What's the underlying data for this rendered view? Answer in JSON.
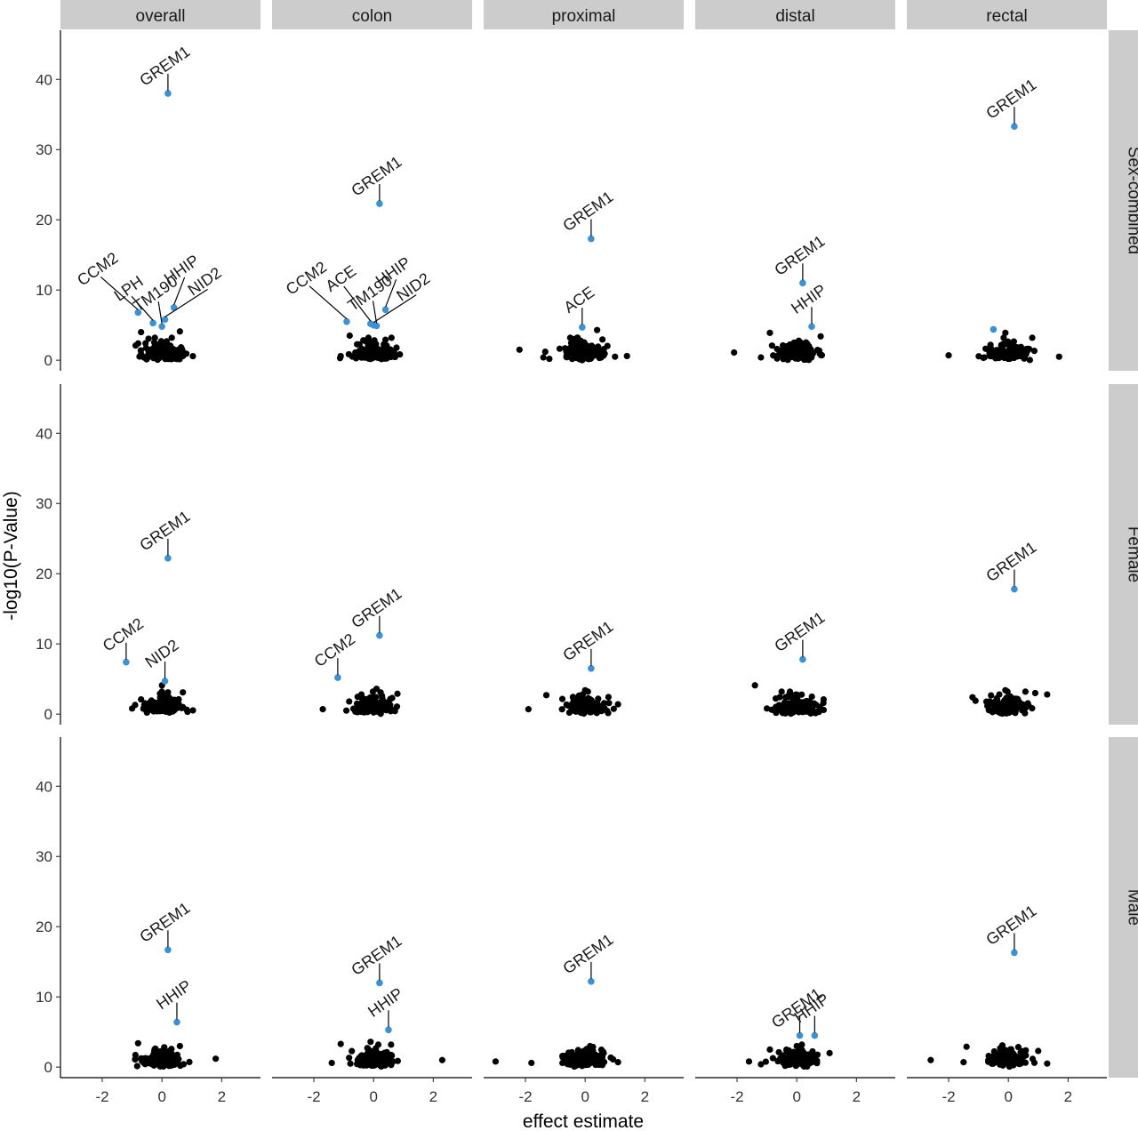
{
  "chart_data": {
    "type": "scatter",
    "xlabel": "effect estimate",
    "ylabel": "-log10(P-Value)",
    "xlim": [
      -3.4,
      3.3
    ],
    "ylim": [
      -1.5,
      47
    ],
    "x_ticks": [
      -2,
      0,
      2
    ],
    "y_ticks": [
      0,
      10,
      20,
      30,
      40
    ],
    "columns": [
      "overall",
      "colon",
      "proximal",
      "distal",
      "rectal"
    ],
    "rows": [
      "Sex-combined",
      "Female",
      "Male"
    ],
    "colors": {
      "highlight": "#3a91d8",
      "background": "#000000",
      "strip": "#cccccc"
    },
    "panels": [
      {
        "row": "Sex-combined",
        "col": "overall",
        "highlighted": [
          {
            "gene": "GREM1",
            "x": 0.2,
            "y": 38.0
          },
          {
            "gene": "CCM2",
            "x": -0.8,
            "y": 6.8
          },
          {
            "gene": "LPH",
            "x": -0.3,
            "y": 5.3
          },
          {
            "gene": "TM190",
            "x": 0.0,
            "y": 4.8
          },
          {
            "gene": "HHIP",
            "x": 0.4,
            "y": 7.5
          },
          {
            "gene": "NID2",
            "x": 0.1,
            "y": 5.8
          }
        ],
        "outliers": [
          {
            "x": -0.7,
            "y": 0.9
          },
          {
            "x": -0.7,
            "y": 4.0
          },
          {
            "x": 0.7,
            "y": 0.6
          },
          {
            "x": 0.6,
            "y": 4.1
          }
        ]
      },
      {
        "row": "Sex-combined",
        "col": "colon",
        "highlighted": [
          {
            "gene": "GREM1",
            "x": 0.2,
            "y": 22.3
          },
          {
            "gene": "CCM2",
            "x": -0.9,
            "y": 5.5
          },
          {
            "gene": "ACE",
            "x": -0.1,
            "y": 5.2
          },
          {
            "gene": "TM190",
            "x": 0.1,
            "y": 4.9
          },
          {
            "gene": "HHIP",
            "x": 0.4,
            "y": 7.2
          },
          {
            "gene": "NID2",
            "x": 0.0,
            "y": 5.0
          }
        ],
        "outliers": [
          {
            "x": -1.1,
            "y": 0.6
          },
          {
            "x": -0.8,
            "y": 3.5
          },
          {
            "x": 0.7,
            "y": 0.8
          },
          {
            "x": 0.6,
            "y": 3.2
          }
        ]
      },
      {
        "row": "Sex-combined",
        "col": "proximal",
        "highlighted": [
          {
            "gene": "GREM1",
            "x": 0.2,
            "y": 17.3
          },
          {
            "gene": "ACE",
            "x": -0.1,
            "y": 4.7
          }
        ],
        "outliers": [
          {
            "x": -2.2,
            "y": 1.5
          },
          {
            "x": -1.4,
            "y": 0.4
          },
          {
            "x": -1.2,
            "y": 0.2
          },
          {
            "x": 1.0,
            "y": 0.5
          },
          {
            "x": 1.4,
            "y": 0.6
          },
          {
            "x": -0.5,
            "y": 3.2
          },
          {
            "x": 0.4,
            "y": 4.3
          }
        ]
      },
      {
        "row": "Sex-combined",
        "col": "distal",
        "highlighted": [
          {
            "gene": "GREM1",
            "x": 0.2,
            "y": 11.0
          },
          {
            "gene": "HHIP",
            "x": 0.5,
            "y": 4.8
          }
        ],
        "outliers": [
          {
            "x": -2.1,
            "y": 1.1
          },
          {
            "x": -1.2,
            "y": 0.4
          },
          {
            "x": -0.9,
            "y": 3.9
          },
          {
            "x": 0.8,
            "y": 3.4
          }
        ]
      },
      {
        "row": "Sex-combined",
        "col": "rectal",
        "highlighted": [
          {
            "gene": "GREM1",
            "x": 0.2,
            "y": 33.3
          },
          {
            "gene": "",
            "x": -0.5,
            "y": 4.4
          }
        ],
        "outliers": [
          {
            "x": -2.0,
            "y": 0.7
          },
          {
            "x": -0.8,
            "y": 0.4
          },
          {
            "x": 1.7,
            "y": 0.5
          },
          {
            "x": 0.8,
            "y": 3.2
          },
          {
            "x": -0.1,
            "y": 3.9
          }
        ]
      },
      {
        "row": "Female",
        "col": "overall",
        "highlighted": [
          {
            "gene": "GREM1",
            "x": 0.2,
            "y": 22.2
          },
          {
            "gene": "CCM2",
            "x": -1.2,
            "y": 7.4
          },
          {
            "gene": "NID2",
            "x": 0.1,
            "y": 4.7
          }
        ],
        "outliers": [
          {
            "x": -1.0,
            "y": 0.8
          },
          {
            "x": -0.9,
            "y": 1.3
          },
          {
            "x": -0.7,
            "y": 2.1
          },
          {
            "x": 0.7,
            "y": 3.1
          },
          {
            "x": 0.7,
            "y": 1.0
          },
          {
            "x": 0.0,
            "y": 4.1
          }
        ]
      },
      {
        "row": "Female",
        "col": "colon",
        "highlighted": [
          {
            "gene": "GREM1",
            "x": 0.2,
            "y": 11.2
          },
          {
            "gene": "CCM2",
            "x": -1.2,
            "y": 5.2
          }
        ],
        "outliers": [
          {
            "x": -1.7,
            "y": 0.7
          },
          {
            "x": 0.8,
            "y": 2.9
          },
          {
            "x": 0.1,
            "y": 3.6
          }
        ]
      },
      {
        "row": "Female",
        "col": "proximal",
        "highlighted": [
          {
            "gene": "GREM1",
            "x": 0.2,
            "y": 6.5
          }
        ],
        "outliers": [
          {
            "x": -1.9,
            "y": 0.7
          },
          {
            "x": -1.3,
            "y": 2.7
          },
          {
            "x": 1.1,
            "y": 1.4
          },
          {
            "x": 0.0,
            "y": 3.4
          }
        ]
      },
      {
        "row": "Female",
        "col": "distal",
        "highlighted": [
          {
            "gene": "GREM1",
            "x": 0.2,
            "y": 7.8
          }
        ],
        "outliers": [
          {
            "x": -1.4,
            "y": 4.1
          },
          {
            "x": -1.0,
            "y": 0.8
          },
          {
            "x": 0.9,
            "y": 2.1
          },
          {
            "x": 0.9,
            "y": 0.6
          }
        ]
      },
      {
        "row": "Female",
        "col": "rectal",
        "highlighted": [
          {
            "gene": "GREM1",
            "x": 0.2,
            "y": 17.8
          }
        ],
        "outliers": [
          {
            "x": -1.2,
            "y": 2.4
          },
          {
            "x": -1.1,
            "y": 1.9
          },
          {
            "x": 1.3,
            "y": 2.8
          },
          {
            "x": 0.9,
            "y": 3.0
          },
          {
            "x": -0.1,
            "y": 3.4
          }
        ]
      },
      {
        "row": "Male",
        "col": "overall",
        "highlighted": [
          {
            "gene": "GREM1",
            "x": 0.2,
            "y": 16.7
          },
          {
            "gene": "HHIP",
            "x": 0.5,
            "y": 6.4
          }
        ],
        "outliers": [
          {
            "x": 1.8,
            "y": 1.2
          },
          {
            "x": -0.8,
            "y": 3.4
          },
          {
            "x": -0.9,
            "y": 1.1
          },
          {
            "x": 0.6,
            "y": 3.0
          }
        ]
      },
      {
        "row": "Male",
        "col": "colon",
        "highlighted": [
          {
            "gene": "GREM1",
            "x": 0.2,
            "y": 12.0
          },
          {
            "gene": "HHIP",
            "x": 0.5,
            "y": 5.3
          }
        ],
        "outliers": [
          {
            "x": -1.4,
            "y": 0.6
          },
          {
            "x": 2.3,
            "y": 1.0
          },
          {
            "x": -1.1,
            "y": 3.3
          },
          {
            "x": -0.1,
            "y": 3.6
          }
        ]
      },
      {
        "row": "Male",
        "col": "proximal",
        "highlighted": [
          {
            "gene": "GREM1",
            "x": 0.2,
            "y": 12.2
          }
        ],
        "outliers": [
          {
            "x": -3.0,
            "y": 0.8
          },
          {
            "x": -1.8,
            "y": 0.6
          },
          {
            "x": 1.1,
            "y": 0.7
          },
          {
            "x": 0.6,
            "y": 2.2
          }
        ]
      },
      {
        "row": "Male",
        "col": "distal",
        "highlighted": [
          {
            "gene": "GREM1",
            "x": 0.1,
            "y": 4.5
          },
          {
            "gene": "HHIP",
            "x": 0.6,
            "y": 4.5
          }
        ],
        "outliers": [
          {
            "x": -1.6,
            "y": 0.8
          },
          {
            "x": -1.2,
            "y": 0.4
          },
          {
            "x": 1.1,
            "y": 2.0
          },
          {
            "x": -0.9,
            "y": 2.5
          },
          {
            "x": 0.0,
            "y": 3.0
          }
        ]
      },
      {
        "row": "Male",
        "col": "rectal",
        "highlighted": [
          {
            "gene": "GREM1",
            "x": 0.2,
            "y": 16.3
          }
        ],
        "outliers": [
          {
            "x": -2.6,
            "y": 1.0
          },
          {
            "x": -1.5,
            "y": 0.7
          },
          {
            "x": -1.4,
            "y": 2.9
          },
          {
            "x": 1.3,
            "y": 0.5
          },
          {
            "x": 1.0,
            "y": 2.3
          },
          {
            "x": -0.2,
            "y": 3.1
          }
        ]
      }
    ],
    "cluster": {
      "spread_x": 0.32,
      "max_y": 3.2,
      "seeds": [
        11,
        23,
        37,
        41,
        53,
        67,
        71,
        83,
        97,
        101,
        113,
        127,
        131,
        149,
        151
      ]
    }
  }
}
